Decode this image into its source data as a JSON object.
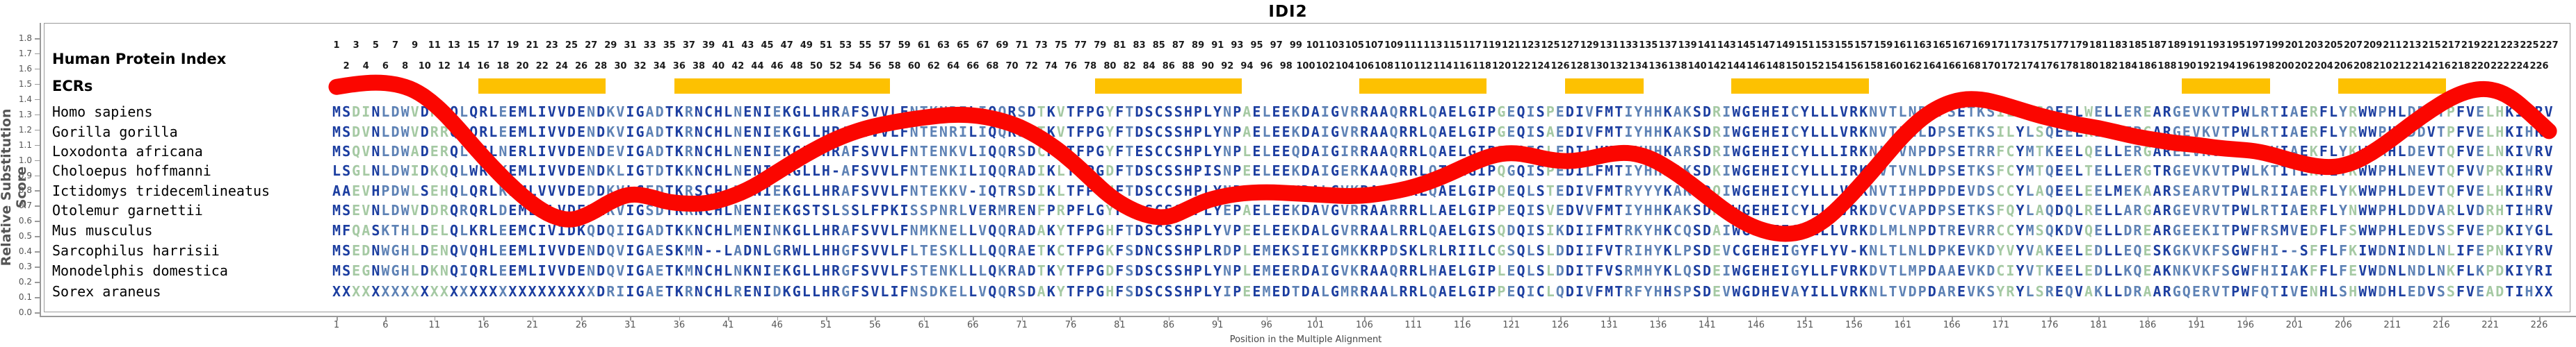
{
  "title": "IDI2",
  "left_panel": {
    "ruler_label": "Human Protein Index",
    "ecr_label": "ECRs"
  },
  "axes": {
    "y": {
      "label": "Relative Substitution Score",
      "min": 0.0,
      "max": 1.8,
      "step": 0.1
    },
    "x": {
      "label": "Position in the Multiple Alignment",
      "tick_start": 1,
      "tick_step": 5,
      "tick_end": 226
    }
  },
  "ruler": {
    "odd_row": {
      "start": 1,
      "end": 227,
      "step": 2
    },
    "even_row": {
      "start": 2,
      "end": 226,
      "step": 2
    }
  },
  "colors": {
    "curve_red": "#FB0600",
    "ecr_orange": "#FDC101",
    "residue_conserved": "#1C3EA0",
    "residue_intermediate": "#5E82B5",
    "residue_variable": "#A5C9A3",
    "axis_gray": "#9a9a9a",
    "tick_text": "#555555"
  },
  "chart_data": {
    "type": "line",
    "title": "IDI2",
    "xlabel": "Position in the Multiple Alignment",
    "ylabel": "Relative Substitution Score",
    "ylim": [
      0.0,
      1.9
    ],
    "xlim": [
      1,
      227
    ],
    "grid": false,
    "alignment_length": 227,
    "ecr_blocks": [
      {
        "start": 16,
        "end": 28
      },
      {
        "start": 36,
        "end": 57
      },
      {
        "start": 79,
        "end": 93
      },
      {
        "start": 106,
        "end": 118
      },
      {
        "start": 127,
        "end": 134
      },
      {
        "start": 144,
        "end": 157
      },
      {
        "start": 190,
        "end": 198
      },
      {
        "start": 206,
        "end": 216
      }
    ],
    "curve_points": [
      [
        1,
        1.48
      ],
      [
        3,
        1.5
      ],
      [
        5,
        1.51
      ],
      [
        7,
        1.5
      ],
      [
        9,
        1.46
      ],
      [
        11,
        1.37
      ],
      [
        13,
        1.24
      ],
      [
        15,
        1.09
      ],
      [
        17,
        0.95
      ],
      [
        19,
        0.82
      ],
      [
        21,
        0.71
      ],
      [
        23,
        0.63
      ],
      [
        25,
        0.6
      ],
      [
        27,
        0.65
      ],
      [
        29,
        0.73
      ],
      [
        31,
        0.78
      ],
      [
        33,
        0.76
      ],
      [
        35,
        0.72
      ],
      [
        38,
        0.71
      ],
      [
        40,
        0.73
      ],
      [
        43,
        0.8
      ],
      [
        46,
        0.92
      ],
      [
        49,
        1.04
      ],
      [
        52,
        1.14
      ],
      [
        55,
        1.21
      ],
      [
        58,
        1.25
      ],
      [
        61,
        1.28
      ],
      [
        64,
        1.3
      ],
      [
        67,
        1.29
      ],
      [
        70,
        1.24
      ],
      [
        72,
        1.18
      ],
      [
        74,
        1.1
      ],
      [
        76,
        1.0
      ],
      [
        78,
        0.88
      ],
      [
        80,
        0.76
      ],
      [
        82,
        0.68
      ],
      [
        84,
        0.63
      ],
      [
        86,
        0.62
      ],
      [
        88,
        0.68
      ],
      [
        90,
        0.74
      ],
      [
        93,
        0.78
      ],
      [
        96,
        0.79
      ],
      [
        99,
        0.78
      ],
      [
        102,
        0.77
      ],
      [
        105,
        0.76
      ],
      [
        108,
        0.78
      ],
      [
        111,
        0.82
      ],
      [
        114,
        0.89
      ],
      [
        117,
        0.98
      ],
      [
        119,
        1.03
      ],
      [
        121,
        1.05
      ],
      [
        123,
        1.03
      ],
      [
        125,
        1.0
      ],
      [
        127,
        0.99
      ],
      [
        129,
        1.01
      ],
      [
        131,
        1.04
      ],
      [
        133,
        1.05
      ],
      [
        135,
        1.02
      ],
      [
        137,
        0.95
      ],
      [
        139,
        0.86
      ],
      [
        141,
        0.76
      ],
      [
        143,
        0.66
      ],
      [
        145,
        0.58
      ],
      [
        147,
        0.53
      ],
      [
        149,
        0.51
      ],
      [
        151,
        0.53
      ],
      [
        153,
        0.6
      ],
      [
        155,
        0.72
      ],
      [
        157,
        0.86
      ],
      [
        159,
        1.01
      ],
      [
        161,
        1.16
      ],
      [
        163,
        1.28
      ],
      [
        165,
        1.36
      ],
      [
        167,
        1.4
      ],
      [
        169,
        1.4
      ],
      [
        171,
        1.37
      ],
      [
        173,
        1.33
      ],
      [
        175,
        1.29
      ],
      [
        177,
        1.26
      ],
      [
        179,
        1.23
      ],
      [
        181,
        1.21
      ],
      [
        183,
        1.18
      ],
      [
        185,
        1.15
      ],
      [
        187,
        1.13
      ],
      [
        189,
        1.11
      ],
      [
        191,
        1.1
      ],
      [
        193,
        1.08
      ],
      [
        195,
        1.07
      ],
      [
        197,
        1.06
      ],
      [
        199,
        1.03
      ],
      [
        201,
        0.99
      ],
      [
        203,
        0.96
      ],
      [
        205,
        0.95
      ],
      [
        207,
        0.98
      ],
      [
        209,
        1.05
      ],
      [
        211,
        1.14
      ],
      [
        213,
        1.24
      ],
      [
        215,
        1.33
      ],
      [
        217,
        1.41
      ],
      [
        219,
        1.46
      ],
      [
        221,
        1.47
      ],
      [
        223,
        1.42
      ],
      [
        225,
        1.31
      ],
      [
        227,
        1.19
      ]
    ],
    "species": [
      {
        "name": "Homo sapiens",
        "sequence": "MSDINLDWVDRRQLQRLEEMLIVVDENDKVIGADTKRNCHLNENIEKGLLHRAFSVVLFNTKNRILIQQRSDTKVTFPGYFTDSCSSHPLYNPAELEEKDAIGVRRAAQRRLQAELGIPGEQISPEDIVFMTIYHHKAKSDRIWGEHEICYLLLVRKNVTLNPDPSETKSILYLSQEELWELLEREARGEVKVTPWLRTIAERFLYRWWPHLDDVTPFVELHKIHRV"
      },
      {
        "name": "Gorilla gorilla",
        "sequence": "MSDVNLDWVDRRQLQRLEEMLIVVDENDKVIGADTKRNCHLNENIEKGLLHRAFSVVLFNTENRILIQQRSDTKVTFPGYFTDSCSSHPLYNPAELEEKDAIGVRRAAQRRLQAELGIPGEQISAEDIVFMTIYHHKAKSDRIWGEHEICYLLLVRKNVTLNLDPSETKSILYLSQEELRELLERGARGEVKVTPWLRTIAERFLYRWWPHLDDVTPFVELHKIHRV"
      },
      {
        "name": "Loxodonta africana",
        "sequence": "MSQVNLDWADERQLQCLNERLIVVDENDEVIGADTKRNCHLNENIEKGLLHRAFSVVLFNTENKVLIQQRSDCKVTFPGYFTESCCSHPLYNPLELEEQDAIGIRRAAQRRLQAELGIPPEQISLEDILVMTKYHHKARSDRIWGEHEICYLLLIRKNLPVNPDPSETRRFCYMTKEELQELLERGAREEVKVAPWLRVIAEKFLYKWWAHLDEVTQFVELNKIVRV"
      },
      {
        "name": "Choloepus hoffmanni",
        "sequence": "LSGLNLDWIDKQQLWRLKEMLIVVDENDKLIGTDTKKNCHLNENIEKGLLH-AFSVVLFNTENKILIQQRADIKLTFPGDFTDSCSSHPISNPEELEEKDAIGERKAAQRRLQTELGIPQGQISPEDILFMTIYHHKAKSDKIWGEHEICYLLLIRKNVTVNLDPSETKSFCYMTQEELTELLERGTRGEVKVTPWLKTITEKFLYKWWPHLNEVTQFVVPRKIHRV"
      },
      {
        "name": "Ictidomys tridecemlineatus",
        "sequence": "AAEVHPDWLSEHQLQRLKEMLVVVDEDDKVLGEDTKRSCHLNENIEKGLLHRAFSVVLFNTEKKV-IQTRSDIKLTFPGHFTDSCCSHPLYNPAELEEKDALGVKRAALRRLQAELGIPQEQLSTEDIVFMTRYYYKAKSDQIWGEHEICYLLLVKKNVTIHPDPDEVDSCCYLAQEELEELMEKAARSEARVTPWLRIIAERFLYKWWPHLDEVTQFVELHKIHRV"
      },
      {
        "name": "Otolemur garnettii",
        "sequence": "MSEVNLDWVDDRQRQRLDEMLILVDEDNKVIGSDTKRNCHLNENIEKGSTSLSSLFPKISSPNRLVERMRENFPRPFLGYFTDSCSSHPLYEPAELEEKDAVGVRRAARRRLLAELGIPPEQISVEDVVFMTIYHHKAKSDRVWGEHEICYLLLVRKDVCVAPDPSETKSFQYLAQDQLRELLARGARGEVRVTPWLRTIAERFLYNWWPHLDDVARLVDRHTIHRV"
      },
      {
        "name": "Mus musculus",
        "sequence": "MFQASKTHLDELQLKRLEEMCIVIDKQDQIIGADTKKNCHLMENINKGLLHRAFSVVLFNMKNELLVQQRADAKYTFPGHFTDSCSSHPLYVPEELEEKDALGVRRAALRRLQAELGISQDQISIKDIIFMTRKYHKCQSDAIWGEHEIGYLLLVRKDLMLNPDTREVRRCCYMSQKDVQELLDREARGEEKITPWFRSMVEDFLFSWWPHLEDVSSFVEPDKIYGL"
      },
      {
        "name": "Sarcophilus harrisii",
        "sequence": "MSEDNWGHLDENQVQHLEEMLIVVDENDQVIGAESKMN--LADNLGRWLLHHGFSVVLFLTESKLLLQQRAETKCTFPGKFSDNCSSHPLRDPLEMEKSIEIGMKKRPDSKLRLRIILCGSQLSLDDIIFVTRIHYKLPSDEVCGEHEIGYFLYV-KNLTLNLDPKEVKDYVYVAKEELEDLLEQESKGKVKFSGWFHI--SFFLFKIWDNINDLNLIFEPNKIYRV"
      },
      {
        "name": "Monodelphis domestica",
        "sequence": "MSEGNWGHLDKNQIQRLEEMLIVVDENDQVIGAETKMNCHLNKNIEKGLLHRGFSVVLFSTENKLLLQKRADTKYTFPGDFSDSCSSHPLYNPLEMEERDAIGVKRAAQRRLHAELGIPLEQLSLDDITFVSRMHYKLQSDEIWGEHEIGYLLFVRKDVTLMPDAAEVKDCIYVTKEELEDLLKQEAKNKVKFSGWFHIIAKFFLFEVWDNLNDLNKFLKPDKIYRI"
      },
      {
        "name": "Sorex araneus",
        "sequence": "XXXXXXXXXXXXXXXXXXXXXXXXXXXDRIIGAETKRNCHLRENIDKGLLHRGFSVLIFNSDKELLVQQRSDAKYTFPGHFSDSCSSHPLYIPEEMEDTDALGMRRAALRRLQAELGIPPEQICLQDIVFMTRFYHHSPSDEVWGDHEVAYILLVRKNLTVDPDAREVKSYRYLSREQVAKLLDRAARGQERVTPWFQTIVENHLSHWWDHLEDVSSFVEADTIHXX"
      }
    ]
  }
}
